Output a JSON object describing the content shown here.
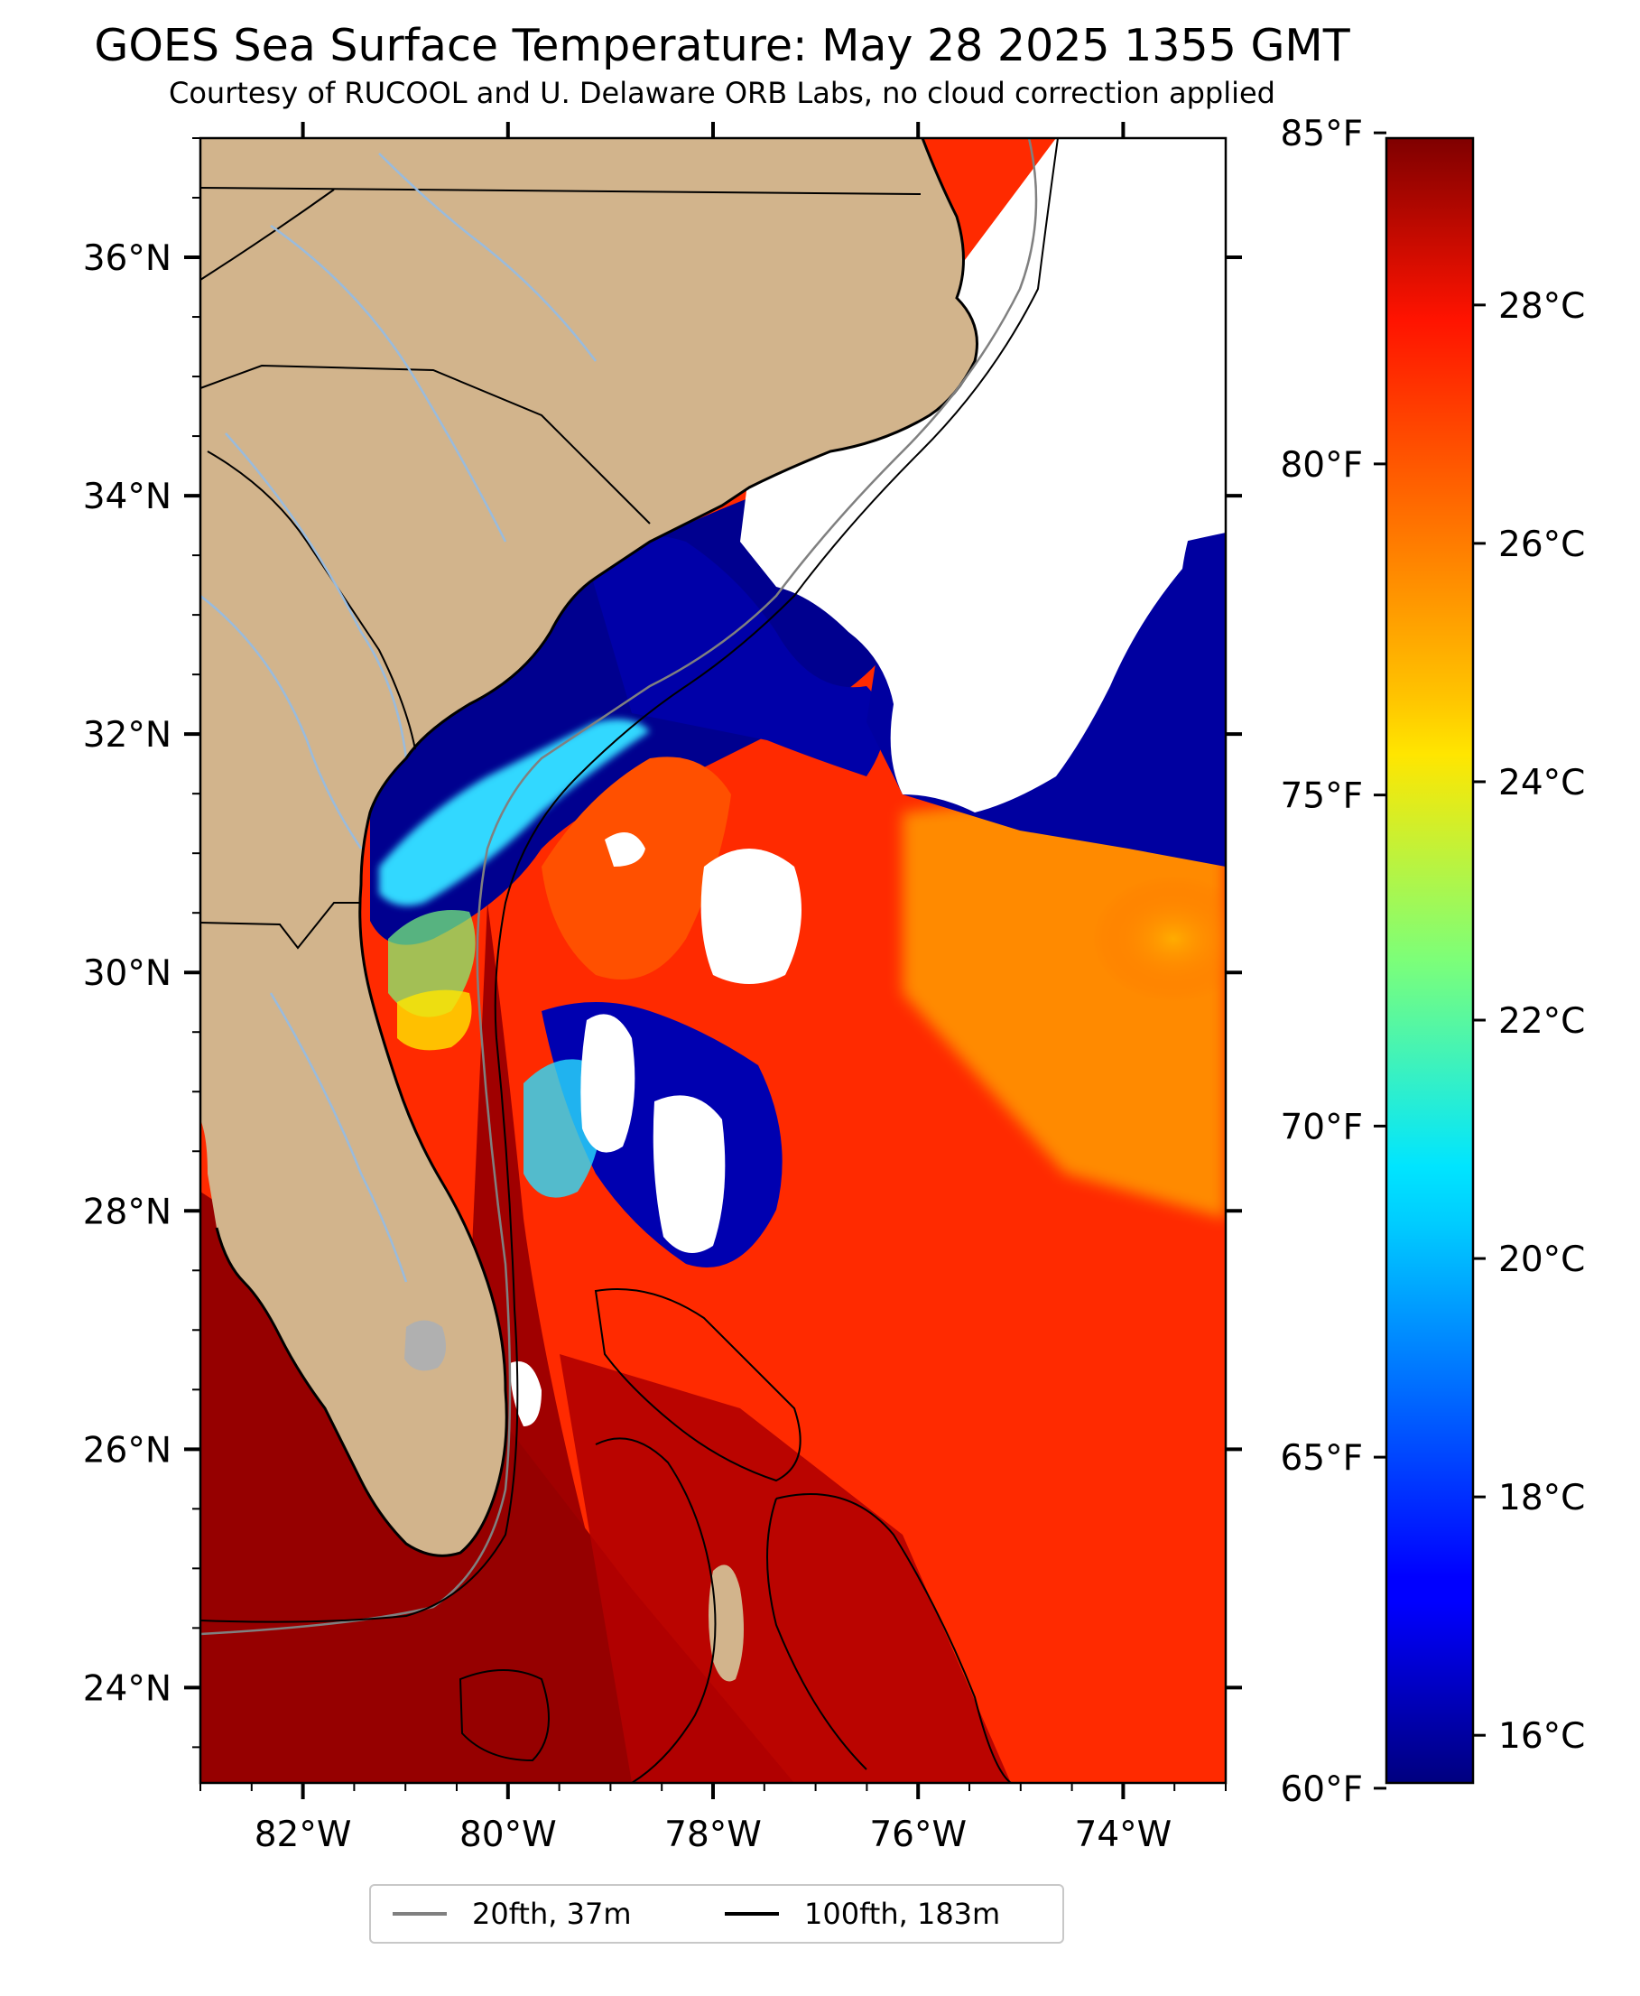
{
  "title": "GOES Sea Surface Temperature: May 28 2025 1355 GMT",
  "subtitle": "Courtesy of RUCOOL and U. Delaware ORB Labs, no cloud correction applied",
  "map": {
    "extent": {
      "lon_min": -83.0,
      "lon_max": -73.0,
      "lat_min": 23.2,
      "lat_max": 37.0
    },
    "lat_ticks": [
      {
        "value": 36,
        "label": "36°N"
      },
      {
        "value": 34,
        "label": "34°N"
      },
      {
        "value": 32,
        "label": "32°N"
      },
      {
        "value": 30,
        "label": "30°N"
      },
      {
        "value": 28,
        "label": "28°N"
      },
      {
        "value": 26,
        "label": "26°N"
      },
      {
        "value": 24,
        "label": "24°N"
      }
    ],
    "lon_ticks": [
      {
        "value": -82,
        "label": "82°W"
      },
      {
        "value": -80,
        "label": "80°W"
      },
      {
        "value": -78,
        "label": "78°W"
      },
      {
        "value": -76,
        "label": "76°W"
      },
      {
        "value": -74,
        "label": "74°W"
      }
    ],
    "colors": {
      "land": "#d2b48c",
      "cloud": "#ffffff",
      "coast": "#000000",
      "rivers": "#99bbdd",
      "isobath_20fth": "#808080",
      "isobath_100fth": "#000000"
    }
  },
  "colorbar": {
    "colormap": "jet",
    "celsius_range": [
      15.6,
      29.4
    ],
    "celsius_ticks": [
      {
        "value": 16,
        "label": "16°C"
      },
      {
        "value": 18,
        "label": "18°C"
      },
      {
        "value": 20,
        "label": "20°C"
      },
      {
        "value": 22,
        "label": "22°C"
      },
      {
        "value": 24,
        "label": "24°C"
      },
      {
        "value": 26,
        "label": "26°C"
      },
      {
        "value": 28,
        "label": "28°C"
      }
    ],
    "fahrenheit_ticks": [
      {
        "value": 60,
        "label": "60°F"
      },
      {
        "value": 65,
        "label": "65°F"
      },
      {
        "value": 70,
        "label": "70°F"
      },
      {
        "value": 75,
        "label": "75°F"
      },
      {
        "value": 80,
        "label": "80°F"
      },
      {
        "value": 85,
        "label": "85°F"
      }
    ]
  },
  "legend": {
    "items": [
      {
        "label": "20fth, 37m",
        "color": "#808080"
      },
      {
        "label": "100fth, 183m",
        "color": "#000000"
      }
    ]
  }
}
